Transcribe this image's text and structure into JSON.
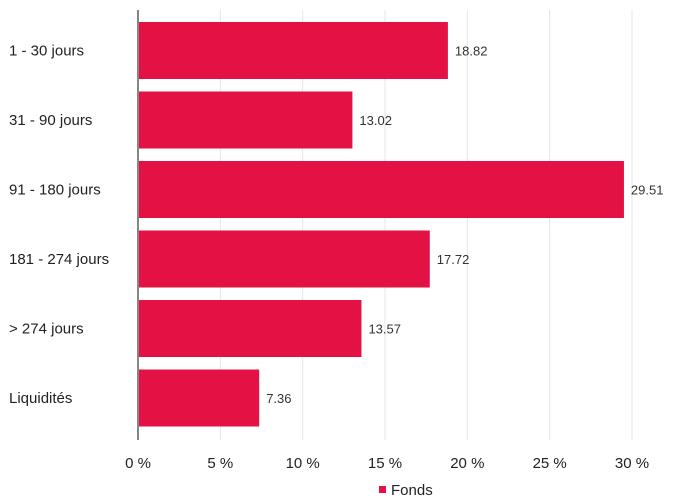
{
  "chart_data": {
    "type": "bar",
    "orientation": "horizontal",
    "categories": [
      "1 - 30 jours",
      "31 - 90 jours",
      "91 - 180 jours",
      "181 - 274 jours",
      "> 274 jours",
      "Liquidités"
    ],
    "series": [
      {
        "name": "Fonds",
        "values": [
          18.82,
          13.02,
          29.51,
          17.72,
          13.57,
          7.36
        ],
        "value_labels": [
          "18.82",
          "13.02",
          "29.51",
          "17.72",
          "13.57",
          "7.36"
        ],
        "color": "#E31144"
      }
    ],
    "xlim": [
      0,
      30
    ],
    "x_ticks": [
      0,
      5,
      10,
      15,
      20,
      25,
      30
    ],
    "x_tick_labels": [
      "0 %",
      "5 %",
      "10 %",
      "15 %",
      "20 %",
      "25 %",
      "30 %"
    ],
    "grid": true,
    "legend": "bottom-center"
  }
}
